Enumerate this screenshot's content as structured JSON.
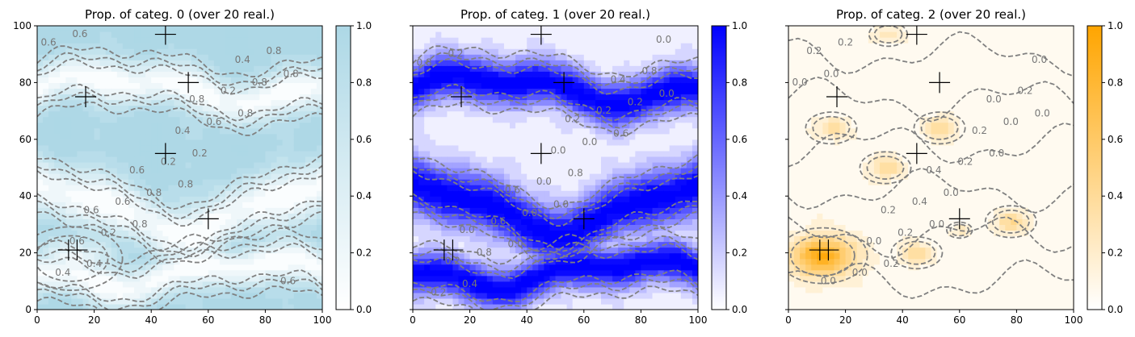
{
  "chart_data": [
    {
      "type": "heatmap",
      "title": "Prop. of categ. 0 (over 20 real.)",
      "xlim": [
        0,
        100
      ],
      "ylim": [
        0,
        100
      ],
      "x_ticks": [
        "0",
        "20",
        "40",
        "60",
        "80",
        "100"
      ],
      "y_ticks": [
        "0",
        "20",
        "40",
        "60",
        "80",
        "100"
      ],
      "colorbar": {
        "range": [
          0,
          1
        ],
        "ticks": [
          "0.0",
          "0.2",
          "0.4",
          "0.6",
          "0.8",
          "1.0"
        ],
        "color_low": "#ffffff",
        "color_high": "#add8e6"
      },
      "channels": [
        {
          "y": 78,
          "amp": 4,
          "phase": 0.0,
          "sigma": 5.5,
          "type": "river"
        },
        {
          "y": 36,
          "amp": 8,
          "phase": 1.5,
          "sigma": 7,
          "type": "river"
        },
        {
          "y": 13,
          "amp": 4,
          "phase": 3.0,
          "sigma": 5,
          "type": "river"
        }
      ],
      "blobs": [
        {
          "x": 12,
          "y": 18,
          "r": 8,
          "strength": 0.9
        }
      ],
      "invert": true,
      "contour_labels": [
        "0.6",
        "0.8",
        "0.8",
        "0.8",
        "0.8",
        "0.4",
        "0.2",
        "0.6",
        "0.8",
        "0.8",
        "0.2",
        "0.6",
        "0.4",
        "0.2",
        "0.8",
        "0.6",
        "0.2",
        "0.6",
        "0.4",
        "0.6",
        "0.6",
        "0.4",
        "0.6",
        "0.8"
      ],
      "markers": [
        [
          45,
          97
        ],
        [
          53,
          80
        ],
        [
          17,
          75
        ],
        [
          45,
          55
        ],
        [
          60,
          32
        ],
        [
          11,
          21
        ],
        [
          14,
          21
        ]
      ]
    },
    {
      "type": "heatmap",
      "title": "Prop. of categ. 1 (over 20 real.)",
      "xlim": [
        0,
        100
      ],
      "ylim": [
        0,
        100
      ],
      "x_ticks": [
        "0",
        "20",
        "40",
        "60",
        "80",
        "100"
      ],
      "y_ticks": [
        "0",
        "20",
        "40",
        "60",
        "80",
        "100"
      ],
      "colorbar": {
        "range": [
          0,
          1
        ],
        "ticks": [
          "0.0",
          "0.2",
          "0.4",
          "0.6",
          "0.8",
          "1.0"
        ],
        "color_low": "#ffffff",
        "color_high": "#0000ff"
      },
      "channels": [
        {
          "y": 78,
          "amp": 4,
          "phase": 0.0,
          "sigma": 5.5,
          "type": "river"
        },
        {
          "y": 36,
          "amp": 8,
          "phase": 1.5,
          "sigma": 7,
          "type": "river"
        },
        {
          "y": 13,
          "amp": 4,
          "phase": 3.0,
          "sigma": 5,
          "type": "river"
        }
      ],
      "blobs": [],
      "invert": false,
      "contour_labels": [
        "0.2",
        "0.0",
        "0.0",
        "0.0",
        "0.6",
        "0.4",
        "0.8",
        "0.8",
        "0.0",
        "0.2",
        "0.8",
        "0.0",
        "0.2",
        "0.0",
        "0.8",
        "0.6",
        "0.2",
        "0.2",
        "0.0",
        "0.0",
        "0.6",
        "0.4",
        "0.0",
        "0.2"
      ],
      "markers": [
        [
          45,
          97
        ],
        [
          53,
          80
        ],
        [
          17,
          75
        ],
        [
          45,
          55
        ],
        [
          60,
          32
        ],
        [
          11,
          21
        ],
        [
          14,
          21
        ]
      ]
    },
    {
      "type": "heatmap",
      "title": "Prop. of categ. 2 (over 20 real.)",
      "xlim": [
        0,
        100
      ],
      "ylim": [
        0,
        100
      ],
      "x_ticks": [
        "0",
        "20",
        "40",
        "60",
        "80",
        "100"
      ],
      "y_ticks": [
        "0",
        "20",
        "40",
        "60",
        "80",
        "100"
      ],
      "colorbar": {
        "range": [
          0,
          1
        ],
        "ticks": [
          "0.0",
          "0.2",
          "0.4",
          "0.6",
          "0.8",
          "1.0"
        ],
        "color_low": "#ffffff",
        "color_high": "#ffa500"
      },
      "channels": [],
      "blobs": [
        {
          "x": 12,
          "y": 19,
          "r": 7,
          "strength": 0.85
        },
        {
          "x": 34,
          "y": 50,
          "r": 4,
          "strength": 0.32
        },
        {
          "x": 53,
          "y": 64,
          "r": 4,
          "strength": 0.3
        },
        {
          "x": 15,
          "y": 64,
          "r": 4,
          "strength": 0.28
        },
        {
          "x": 78,
          "y": 31,
          "r": 4,
          "strength": 0.33
        },
        {
          "x": 45,
          "y": 20,
          "r": 4,
          "strength": 0.3
        },
        {
          "x": 35,
          "y": 97,
          "r": 3,
          "strength": 0.22
        },
        {
          "x": 60,
          "y": 28,
          "r": 2,
          "strength": 0.22
        }
      ],
      "invert": false,
      "contour_labels": [
        "0.0",
        "0.0",
        "0.0",
        "0.2",
        "0.0",
        "0.2",
        "0.0",
        "0.0",
        "0.2",
        "0.0",
        "0.0",
        "0.2",
        "0.2",
        "0.4",
        "0.2",
        "0.0",
        "0.2",
        "0.0",
        "0.4",
        "0.0",
        "0.2",
        "0.0"
      ],
      "markers": [
        [
          45,
          97
        ],
        [
          53,
          80
        ],
        [
          17,
          75
        ],
        [
          45,
          55
        ],
        [
          60,
          32
        ],
        [
          11,
          21
        ],
        [
          14,
          21
        ]
      ]
    }
  ]
}
